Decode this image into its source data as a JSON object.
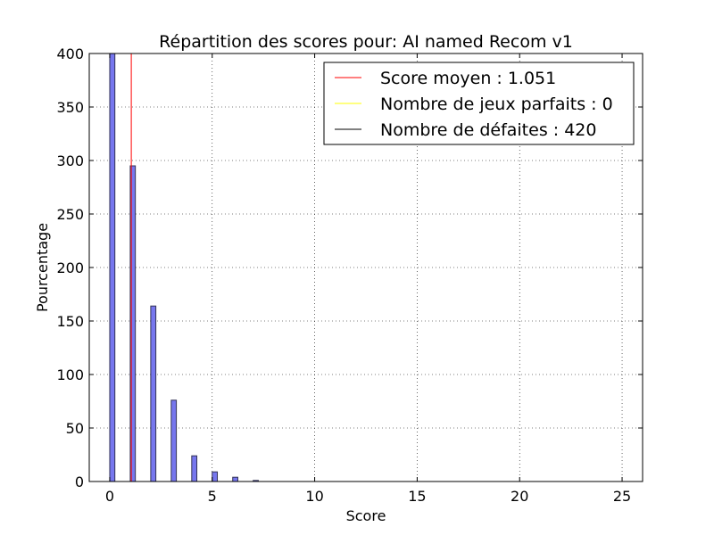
{
  "chart_data": {
    "type": "bar",
    "title": "Répartition des scores pour: AI named Recom v1",
    "xlabel": "Score",
    "ylabel": "Pourcentage",
    "xlim": [
      -1,
      26
    ],
    "ylim": [
      0,
      400
    ],
    "xticks": [
      "0",
      "5",
      "10",
      "15",
      "20",
      "25"
    ],
    "yticks": [
      "0",
      "50",
      "100",
      "150",
      "200",
      "250",
      "300",
      "350",
      "400"
    ],
    "grid": true,
    "legend_position": "top-right",
    "bar_color": "#7777ee",
    "bar_edge_color": "#333355",
    "bars": [
      {
        "x": 0,
        "value": 400
      },
      {
        "x": 1,
        "value": 295
      },
      {
        "x": 2,
        "value": 164
      },
      {
        "x": 3,
        "value": 76
      },
      {
        "x": 4,
        "value": 24
      },
      {
        "x": 5,
        "value": 9
      },
      {
        "x": 6,
        "value": 4
      },
      {
        "x": 7,
        "value": 1
      }
    ],
    "series": [
      {
        "name": "Score moyen : 1.051",
        "color": "#ff0000",
        "x": 1.051
      },
      {
        "name": "Nombre de jeux parfaits : 0",
        "color": "#ffff00",
        "x": null
      },
      {
        "name": "Nombre de défaites : 420",
        "color": "#000000",
        "x": null
      }
    ]
  }
}
